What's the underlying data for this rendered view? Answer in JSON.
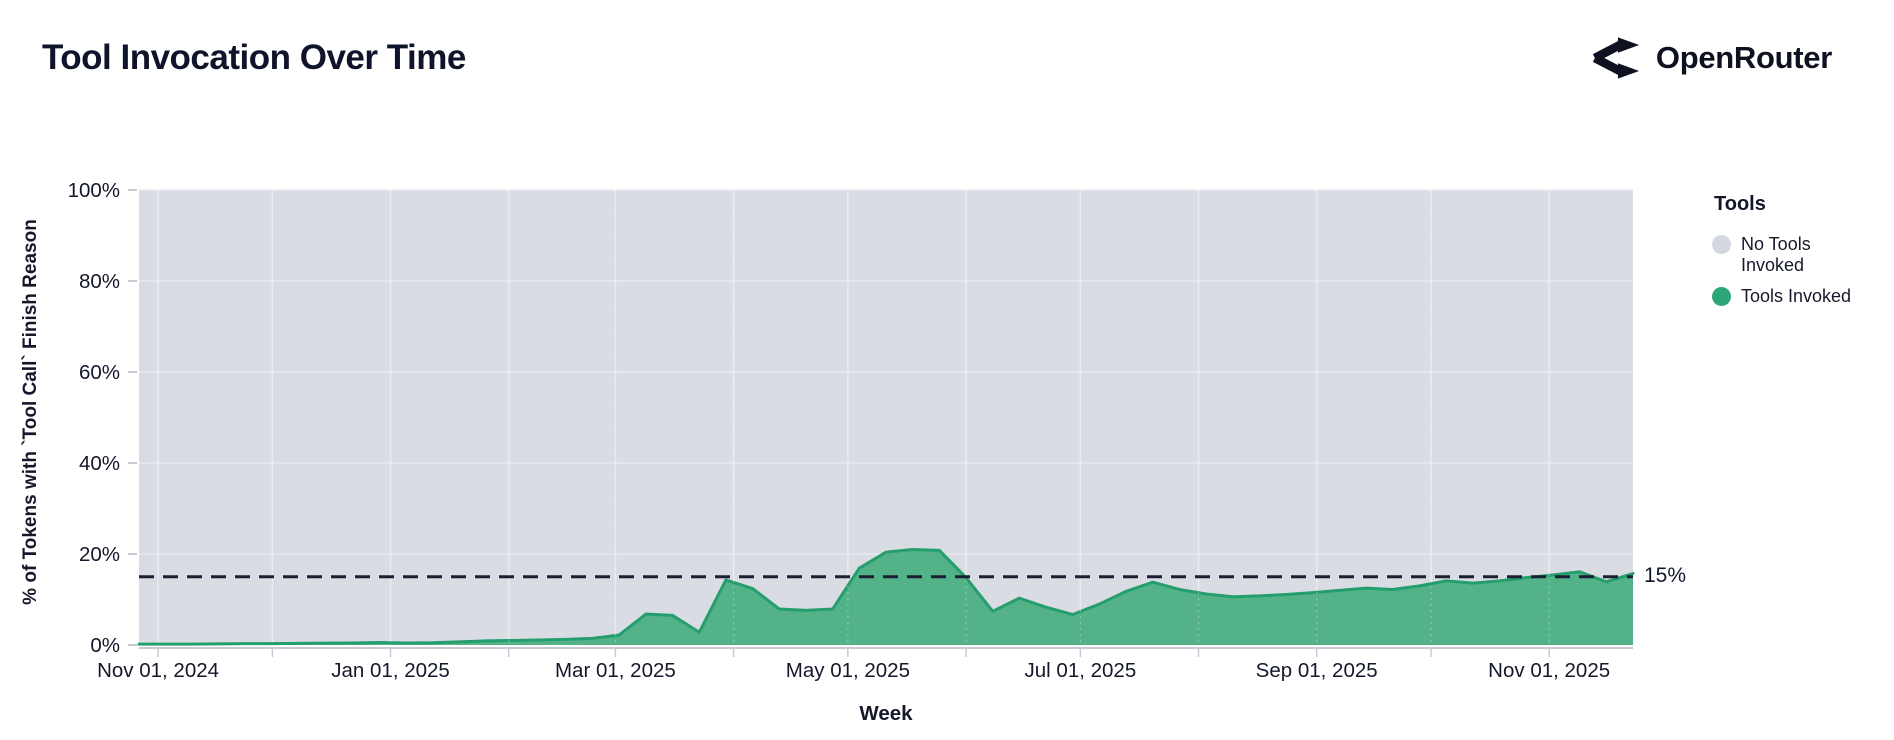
{
  "header": {
    "title": "Tool Invocation Over Time"
  },
  "logo": {
    "text": "OpenRouter",
    "icon": "openrouter-routes-icon"
  },
  "annotation": {
    "label": "15%",
    "value": 15
  },
  "legend": {
    "title": "Tools",
    "items": [
      {
        "name": "No Tools Invoked",
        "label_line1": "No Tools",
        "label_line2": "Invoked",
        "color": "#d3d7df"
      },
      {
        "name": "Tools Invoked",
        "label_line1": "Tools Invoked",
        "label_line2": "",
        "color": "#2ca578"
      }
    ]
  },
  "colors": {
    "plot_background": "#d9dce3",
    "gridline": "#e8eaee",
    "axis_tick": "#c7cad2",
    "tick_text": "#14182a",
    "reference_line": "#1b1f33",
    "area_fill": "#54b289",
    "area_stroke": "#259e6e"
  },
  "chart_data": {
    "type": "area",
    "title": "Tool Invocation Over Time",
    "xlabel": "Week",
    "ylabel": "% of Tokens with `Tool Call` Finish Reason",
    "ylim": [
      0,
      100
    ],
    "stacked_to_100": true,
    "grid": true,
    "legend_position": "right",
    "y_ticks": [
      {
        "value": 0,
        "label": "0%"
      },
      {
        "value": 20,
        "label": "20%"
      },
      {
        "value": 40,
        "label": "40%"
      },
      {
        "value": 60,
        "label": "60%"
      },
      {
        "value": 80,
        "label": "80%"
      },
      {
        "value": 100,
        "label": "100%"
      }
    ],
    "x_ticks": [
      {
        "date": "2024-11-01",
        "label": "Nov 01, 2024"
      },
      {
        "date": "2025-01-01",
        "label": "Jan 01, 2025"
      },
      {
        "date": "2025-03-01",
        "label": "Mar 01, 2025"
      },
      {
        "date": "2025-05-01",
        "label": "May 01, 2025"
      },
      {
        "date": "2025-07-01",
        "label": "Jul 01, 2025"
      },
      {
        "date": "2025-09-01",
        "label": "Sep 01, 2025"
      },
      {
        "date": "2025-11-01",
        "label": "Nov 01, 2025"
      }
    ],
    "minor_x_gridlines": [
      "2024-11-01",
      "2024-12-01",
      "2025-01-01",
      "2025-02-01",
      "2025-03-01",
      "2025-04-01",
      "2025-05-01",
      "2025-06-01",
      "2025-07-01",
      "2025-08-01",
      "2025-09-01",
      "2025-10-01",
      "2025-11-01"
    ],
    "reference_line": {
      "value": 15,
      "label": "15%"
    },
    "x": [
      "2024-10-27",
      "2024-11-03",
      "2024-11-10",
      "2024-11-17",
      "2024-11-24",
      "2024-12-01",
      "2024-12-08",
      "2024-12-15",
      "2024-12-22",
      "2024-12-29",
      "2025-01-05",
      "2025-01-12",
      "2025-01-19",
      "2025-01-26",
      "2025-02-02",
      "2025-02-09",
      "2025-02-16",
      "2025-02-23",
      "2025-03-02",
      "2025-03-09",
      "2025-03-16",
      "2025-03-23",
      "2025-03-30",
      "2025-04-06",
      "2025-04-13",
      "2025-04-20",
      "2025-04-27",
      "2025-05-04",
      "2025-05-11",
      "2025-05-18",
      "2025-05-25",
      "2025-06-01",
      "2025-06-08",
      "2025-06-15",
      "2025-06-22",
      "2025-06-29",
      "2025-07-06",
      "2025-07-13",
      "2025-07-20",
      "2025-07-27",
      "2025-08-03",
      "2025-08-10",
      "2025-08-17",
      "2025-08-24",
      "2025-08-31",
      "2025-09-07",
      "2025-09-14",
      "2025-09-21",
      "2025-09-28",
      "2025-10-05",
      "2025-10-12",
      "2025-10-19",
      "2025-10-26",
      "2025-11-02",
      "2025-11-09",
      "2025-11-16",
      "2025-11-23"
    ],
    "series": [
      {
        "name": "Tools Invoked",
        "values": [
          0.2,
          0.2,
          0.2,
          0.25,
          0.3,
          0.3,
          0.35,
          0.4,
          0.45,
          0.55,
          0.45,
          0.5,
          0.7,
          0.9,
          1.0,
          1.1,
          1.25,
          1.45,
          2.2,
          6.8,
          6.5,
          2.8,
          14.3,
          12.4,
          7.9,
          7.6,
          7.9,
          16.9,
          20.4,
          21.0,
          20.8,
          14.8,
          7.4,
          10.3,
          8.3,
          6.7,
          9.0,
          11.8,
          13.8,
          12.2,
          11.2,
          10.6,
          10.8,
          11.1,
          11.5,
          12.0,
          12.5,
          12.2,
          13.0,
          14.1,
          13.6,
          14.1,
          14.8,
          15.4,
          16.1,
          13.9,
          15.7
        ]
      },
      {
        "name": "No Tools Invoked",
        "role": "remainder-to-100"
      }
    ]
  }
}
